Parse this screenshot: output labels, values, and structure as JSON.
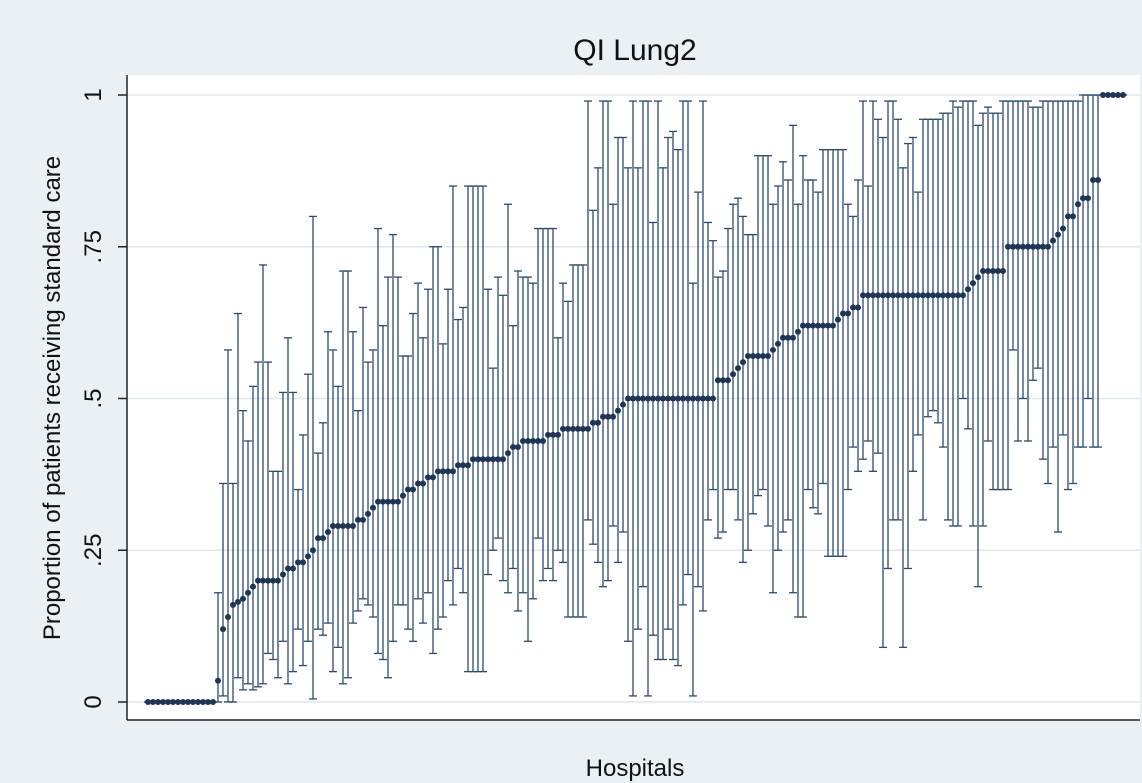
{
  "chart_data": {
    "type": "errorbar",
    "title": "QI Lung2",
    "x_label": "Hospitals",
    "y_label": "Proportion of patients receiving standard care",
    "color": "#2d4a70",
    "ylim": [
      0,
      1
    ],
    "yticks": [
      0,
      {
        "value": 0.25,
        "label": ".25"
      },
      {
        "value": 0.5,
        "label": ".5"
      },
      {
        "value": 0.75,
        "label": ".75"
      },
      1
    ],
    "grid": true,
    "values": [
      0,
      0,
      0,
      0,
      0,
      0,
      0,
      0,
      0,
      0,
      0,
      0,
      0,
      0,
      0.035,
      0.12,
      0.14,
      0.16,
      0.165,
      0.17,
      0.18,
      0.19,
      0.2,
      0.2,
      0.2,
      0.2,
      0.2,
      0.21,
      0.22,
      0.22,
      0.23,
      0.23,
      0.24,
      0.25,
      0.27,
      0.27,
      0.28,
      0.29,
      0.29,
      0.29,
      0.29,
      0.29,
      0.3,
      0.3,
      0.31,
      0.32,
      0.33,
      0.33,
      0.33,
      0.33,
      0.33,
      0.34,
      0.35,
      0.35,
      0.36,
      0.36,
      0.37,
      0.37,
      0.38,
      0.38,
      0.38,
      0.38,
      0.39,
      0.39,
      0.39,
      0.4,
      0.4,
      0.4,
      0.4,
      0.4,
      0.4,
      0.4,
      0.41,
      0.42,
      0.42,
      0.43,
      0.43,
      0.43,
      0.43,
      0.43,
      0.44,
      0.44,
      0.44,
      0.45,
      0.45,
      0.45,
      0.45,
      0.45,
      0.45,
      0.46,
      0.46,
      0.47,
      0.47,
      0.47,
      0.48,
      0.49,
      0.5,
      0.5,
      0.5,
      0.5,
      0.5,
      0.5,
      0.5,
      0.5,
      0.5,
      0.5,
      0.5,
      0.5,
      0.5,
      0.5,
      0.5,
      0.5,
      0.5,
      0.5,
      0.53,
      0.53,
      0.53,
      0.54,
      0.55,
      0.56,
      0.57,
      0.57,
      0.57,
      0.57,
      0.57,
      0.58,
      0.59,
      0.6,
      0.6,
      0.6,
      0.61,
      0.62,
      0.62,
      0.62,
      0.62,
      0.62,
      0.62,
      0.62,
      0.63,
      0.64,
      0.64,
      0.65,
      0.65,
      0.67,
      0.67,
      0.67,
      0.67,
      0.67,
      0.67,
      0.67,
      0.67,
      0.67,
      0.67,
      0.67,
      0.67,
      0.67,
      0.67,
      0.67,
      0.67,
      0.67,
      0.67,
      0.67,
      0.67,
      0.67,
      0.68,
      0.69,
      0.7,
      0.71,
      0.71,
      0.71,
      0.71,
      0.71,
      0.75,
      0.75,
      0.75,
      0.75,
      0.75,
      0.75,
      0.75,
      0.75,
      0.75,
      0.76,
      0.77,
      0.78,
      0.8,
      0.8,
      0.82,
      0.83,
      0.83,
      0.86,
      0.86,
      1,
      1,
      1,
      1,
      1
    ],
    "lower": [
      0,
      0,
      0,
      0,
      0,
      0,
      0,
      0,
      0,
      0,
      0,
      0,
      0,
      0,
      0,
      0.01,
      0,
      0,
      0.04,
      0.02,
      0.03,
      0.02,
      0.025,
      0.03,
      0.08,
      0.07,
      0.04,
      0.1,
      0.03,
      0.05,
      0.12,
      0.06,
      0.1,
      0.005,
      0.12,
      0.11,
      0.13,
      0.05,
      0.09,
      0.03,
      0.04,
      0.13,
      0.15,
      0.17,
      0.16,
      0.14,
      0.08,
      0.07,
      0.04,
      0.1,
      0.16,
      0.16,
      0.12,
      0.1,
      0.17,
      0.13,
      0.18,
      0.08,
      0.12,
      0.14,
      0.2,
      0.16,
      0.22,
      0.18,
      0.05,
      0.05,
      0.05,
      0.05,
      0.21,
      0.25,
      0.27,
      0.2,
      0.18,
      0.22,
      0.15,
      0.18,
      0.1,
      0.17,
      0.27,
      0.2,
      0.22,
      0.2,
      0.25,
      0.23,
      0.14,
      0.14,
      0.14,
      0.14,
      0.3,
      0.26,
      0.23,
      0.19,
      0.2,
      0.29,
      0.23,
      0.28,
      0.1,
      0.01,
      0.12,
      0.19,
      0.01,
      0.11,
      0.07,
      0.07,
      0.12,
      0.07,
      0.06,
      0.16,
      0.21,
      0.01,
      0.19,
      0.15,
      0.3,
      0.35,
      0.27,
      0.28,
      0.35,
      0.35,
      0.3,
      0.23,
      0.25,
      0.31,
      0.34,
      0.35,
      0.29,
      0.18,
      0.25,
      0.28,
      0.3,
      0.18,
      0.14,
      0.14,
      0.35,
      0.32,
      0.31,
      0.36,
      0.24,
      0.24,
      0.24,
      0.24,
      0.35,
      0.42,
      0.38,
      0.4,
      0.43,
      0.38,
      0.41,
      0.09,
      0.22,
      0.3,
      0.3,
      0.09,
      0.22,
      0.38,
      0.44,
      0.3,
      0.47,
      0.48,
      0.46,
      0.42,
      0.3,
      0.29,
      0.29,
      0.5,
      0.45,
      0.29,
      0.19,
      0.29,
      0.43,
      0.35,
      0.35,
      0.35,
      0.35,
      0.58,
      0.43,
      0.5,
      0.43,
      0.53,
      0.55,
      0.4,
      0.36,
      0.42,
      0.28,
      0.44,
      0.35,
      0.36,
      0.42,
      0.42,
      0.5,
      0.42,
      0.42,
      1,
      1,
      1,
      1,
      1
    ],
    "upper": [
      0,
      0,
      0,
      0,
      0,
      0,
      0,
      0,
      0,
      0,
      0,
      0,
      0,
      0,
      0.18,
      0.36,
      0.58,
      0.36,
      0.64,
      0.48,
      0.43,
      0.52,
      0.56,
      0.72,
      0.56,
      0.38,
      0.38,
      0.51,
      0.6,
      0.51,
      0.35,
      0.44,
      0.54,
      0.8,
      0.41,
      0.46,
      0.61,
      0.58,
      0.52,
      0.71,
      0.71,
      0.61,
      0.48,
      0.65,
      0.56,
      0.58,
      0.78,
      0.62,
      0.7,
      0.77,
      0.7,
      0.57,
      0.57,
      0.64,
      0.69,
      0.6,
      0.68,
      0.75,
      0.75,
      0.59,
      0.68,
      0.85,
      0.63,
      0.65,
      0.85,
      0.85,
      0.85,
      0.85,
      0.68,
      0.55,
      0.7,
      0.67,
      0.82,
      0.62,
      0.71,
      0.7,
      0.7,
      0.69,
      0.78,
      0.78,
      0.78,
      0.78,
      0.6,
      0.69,
      0.66,
      0.72,
      0.72,
      0.72,
      0.99,
      0.81,
      0.88,
      0.99,
      0.99,
      0.82,
      0.93,
      0.93,
      0.88,
      0.99,
      0.88,
      0.99,
      0.99,
      0.79,
      0.99,
      0.88,
      0.93,
      0.94,
      0.91,
      0.99,
      0.99,
      0.69,
      0.84,
      0.99,
      0.79,
      0.76,
      0.7,
      0.71,
      0.78,
      0.82,
      0.83,
      0.8,
      0.77,
      0.77,
      0.9,
      0.9,
      0.9,
      0.82,
      0.85,
      0.89,
      0.86,
      0.95,
      0.82,
      0.9,
      0.86,
      0.86,
      0.84,
      0.91,
      0.91,
      0.91,
      0.91,
      0.91,
      0.82,
      0.8,
      0.86,
      0.99,
      0.85,
      0.99,
      0.96,
      0.93,
      0.99,
      0.99,
      0.96,
      0.88,
      0.92,
      0.93,
      0.84,
      0.96,
      0.96,
      0.96,
      0.96,
      0.97,
      0.97,
      0.99,
      0.98,
      0.99,
      0.99,
      0.99,
      0.95,
      0.97,
      0.98,
      0.97,
      0.97,
      0.99,
      0.99,
      0.99,
      0.99,
      0.99,
      0.99,
      0.98,
      0.98,
      0.99,
      0.99,
      0.99,
      0.99,
      0.99,
      0.99,
      0.99,
      0.99,
      1,
      1,
      1,
      1,
      1,
      1,
      1,
      1,
      1
    ]
  }
}
